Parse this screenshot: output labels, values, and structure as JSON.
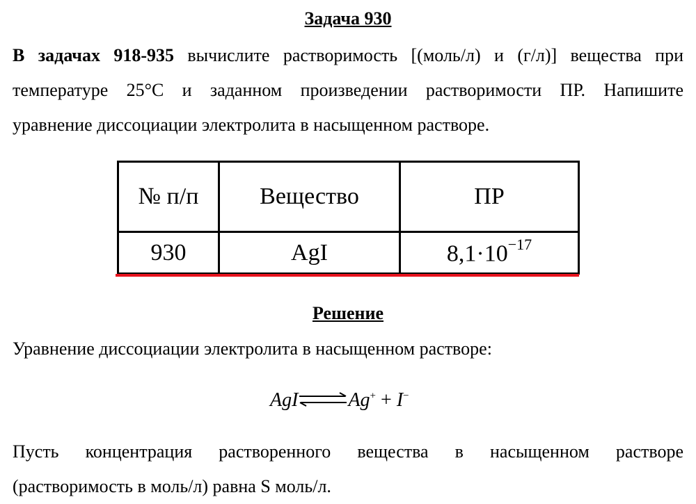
{
  "title": "Задача 930",
  "intro": {
    "bold": "В задачах 918-935",
    "line1_rest": " вычислите растворимость [(моль/л) и (г/л)] вещества при",
    "line2": "температуре 25°С и заданном произведении растворимости ПР. Напишите",
    "line3": "уравнение диссоциации электролита в насыщенном растворе."
  },
  "table": {
    "headers": [
      "№ п/п",
      "Вещество",
      "ПР"
    ],
    "row": {
      "number": "930",
      "substance": "AgI",
      "ksp_mantissa": "8,1·10",
      "ksp_exponent": "−17"
    }
  },
  "accent_color": "#e8141e",
  "solution_title": "Решение",
  "equation_intro": "Уравнение диссоциации электролита в насыщенном растворе:",
  "equation": {
    "left": "AgI",
    "cation": "Ag",
    "cation_charge": "+",
    "plus": " + ",
    "anion": "I",
    "anion_charge": "−"
  },
  "text": {
    "line1": "Пусть концентрация растворенного вещества в насыщенном растворе",
    "line2": "(растворимость в моль/л) равна S моль/л."
  }
}
